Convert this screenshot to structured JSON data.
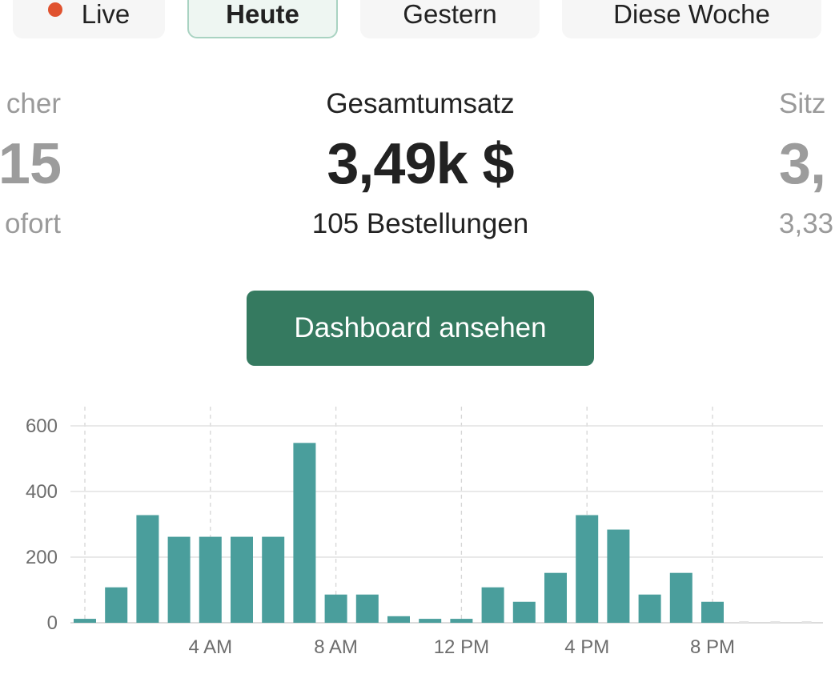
{
  "tabs": [
    {
      "label": "Live",
      "active": false,
      "live_dot": true
    },
    {
      "label": "Heute",
      "active": true
    },
    {
      "label": "Gestern",
      "active": false
    },
    {
      "label": "Diese Woche",
      "active": false
    }
  ],
  "metrics": {
    "left": {
      "label": "cher",
      "value": "15",
      "sub": "ofort"
    },
    "center": {
      "label": "Gesamtumsatz",
      "value": "3,49k $",
      "sub": "105 Bestellungen"
    },
    "right": {
      "label": "Sitz",
      "value": "3,",
      "sub": "3,33"
    }
  },
  "cta": {
    "label": "Dashboard ansehen"
  },
  "colors": {
    "bar": "#4a9e9c",
    "button": "#357a60",
    "live_dot": "#e0522f"
  },
  "chart_data": {
    "type": "bar",
    "categories": [
      "0",
      "1",
      "2",
      "3",
      "4",
      "5",
      "6",
      "7",
      "8",
      "9",
      "10",
      "11",
      "12",
      "13",
      "14",
      "15",
      "16",
      "17",
      "18",
      "19",
      "20",
      "21",
      "22",
      "23"
    ],
    "values": [
      12,
      108,
      328,
      262,
      262,
      262,
      262,
      548,
      86,
      86,
      20,
      12,
      12,
      108,
      64,
      152,
      328,
      284,
      86,
      152,
      64,
      0,
      0,
      0
    ],
    "ylim": [
      0,
      600
    ],
    "yticks": [
      {
        "value": 600,
        "label": "600"
      },
      {
        "value": 400,
        "label": "400"
      },
      {
        "value": 200,
        "label": "200"
      },
      {
        "value": 0,
        "label": "0"
      }
    ],
    "xticks": [
      {
        "index": 4,
        "label": "4 AM"
      },
      {
        "index": 8,
        "label": "8 AM"
      },
      {
        "index": 12,
        "label": "12 PM"
      },
      {
        "index": 16,
        "label": "4 PM"
      },
      {
        "index": 20,
        "label": "8 PM"
      }
    ],
    "grid": true,
    "xlabel": "",
    "ylabel": ""
  }
}
